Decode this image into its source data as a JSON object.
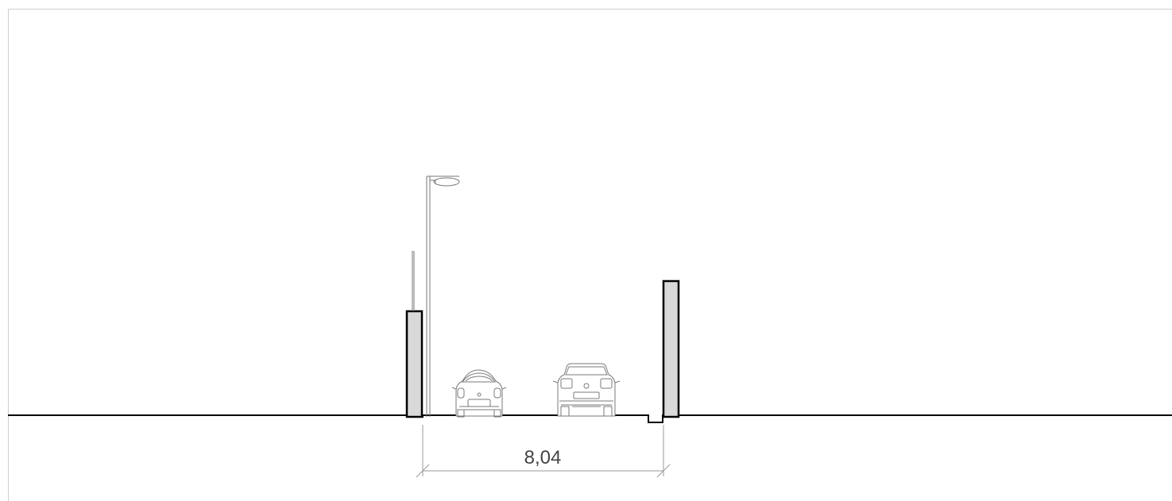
{
  "section": {
    "dimension_label": "8,04"
  },
  "colors": {
    "line": "#000000",
    "wall_fill": "#d9d9d9",
    "light_line": "#8a8a8a",
    "car_line": "#7a7a7a",
    "frame": "#cfcfcf"
  }
}
